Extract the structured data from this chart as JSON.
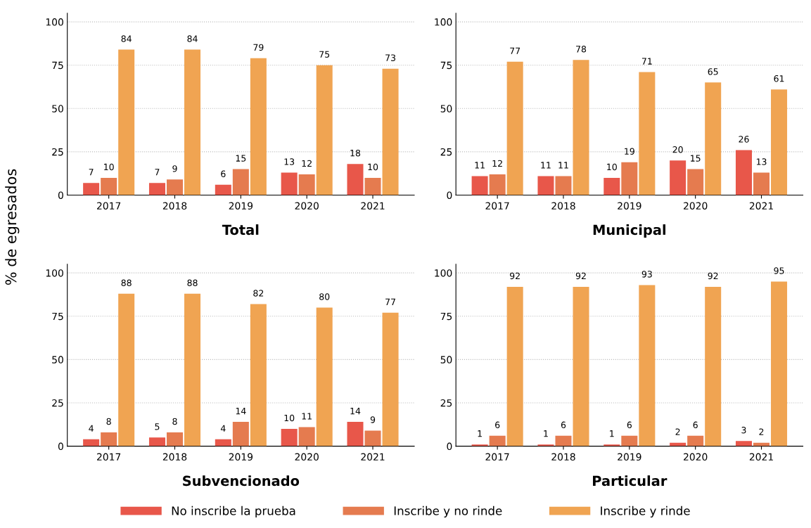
{
  "chart_data": [
    {
      "type": "bar",
      "title": "Total",
      "ylabel": "% de egresados",
      "categories": [
        "2017",
        "2018",
        "2019",
        "2020",
        "2021"
      ],
      "ylim": [
        0,
        105
      ],
      "yticks": [
        0,
        25,
        50,
        75,
        100
      ],
      "grid": "y",
      "data_labels": true,
      "legend": "bottom",
      "series": [
        {
          "name": "No inscribe la prueba",
          "color": "#e8574a",
          "values": [
            7,
            7,
            6,
            13,
            18
          ]
        },
        {
          "name": "Inscribe y no rinde",
          "color": "#e57b4f",
          "values": [
            10,
            9,
            15,
            12,
            10
          ]
        },
        {
          "name": "Inscribe y rinde",
          "color": "#f0a452",
          "values": [
            84,
            84,
            79,
            75,
            73
          ]
        }
      ]
    },
    {
      "type": "bar",
      "title": "Municipal",
      "categories": [
        "2017",
        "2018",
        "2019",
        "2020",
        "2021"
      ],
      "ylim": [
        0,
        105
      ],
      "yticks": [
        0,
        25,
        50,
        75,
        100
      ],
      "grid": "y",
      "data_labels": true,
      "series": [
        {
          "color": "#e8574a",
          "values": [
            11,
            11,
            10,
            20,
            26
          ]
        },
        {
          "color": "#e57b4f",
          "values": [
            12,
            11,
            19,
            15,
            13
          ]
        },
        {
          "color": "#f0a452",
          "values": [
            77,
            78,
            71,
            65,
            61
          ]
        }
      ]
    },
    {
      "type": "bar",
      "title": "Subvencionado",
      "categories": [
        "2017",
        "2018",
        "2019",
        "2020",
        "2021"
      ],
      "ylim": [
        0,
        105
      ],
      "yticks": [
        0,
        25,
        50,
        75,
        100
      ],
      "grid": "y",
      "data_labels": true,
      "series": [
        {
          "color": "#e8574a",
          "values": [
            4,
            5,
            4,
            10,
            14
          ]
        },
        {
          "color": "#e57b4f",
          "values": [
            8,
            8,
            14,
            11,
            9
          ]
        },
        {
          "color": "#f0a452",
          "values": [
            88,
            88,
            82,
            80,
            77
          ]
        }
      ]
    },
    {
      "type": "bar",
      "title": "Particular",
      "categories": [
        "2017",
        "2018",
        "2019",
        "2020",
        "2021"
      ],
      "ylim": [
        0,
        105
      ],
      "yticks": [
        0,
        25,
        50,
        75,
        100
      ],
      "grid": "y",
      "data_labels": true,
      "series": [
        {
          "color": "#e8574a",
          "values": [
            1,
            1,
            1,
            2,
            3
          ]
        },
        {
          "color": "#e57b4f",
          "values": [
            6,
            6,
            6,
            6,
            2
          ]
        },
        {
          "color": "#f0a452",
          "values": [
            92,
            92,
            93,
            92,
            95
          ]
        }
      ]
    }
  ]
}
